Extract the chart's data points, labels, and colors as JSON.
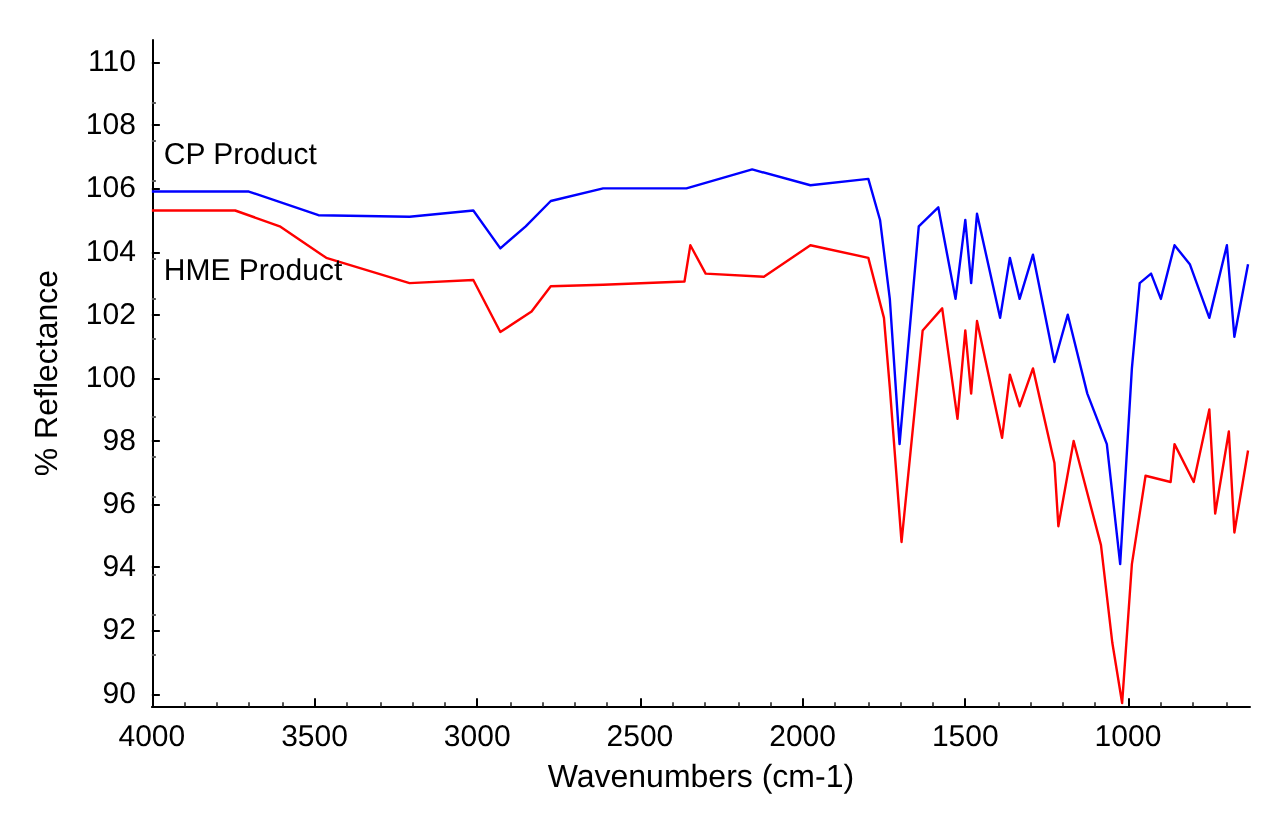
{
  "chart_data": {
    "type": "line",
    "xlabel": "Wavenumbers (cm-1)",
    "ylabel": "% Reflectance",
    "xlim": [
      4000,
      625
    ],
    "ylim": [
      89.6,
      110.7
    ],
    "xticks": [
      4000,
      3500,
      3000,
      2500,
      2000,
      1500,
      1000
    ],
    "yticks": [
      90,
      92,
      94,
      96,
      98,
      100,
      102,
      104,
      106,
      108,
      110
    ],
    "grid": false,
    "legend": false,
    "marker": "none",
    "line_style": "solid",
    "series": [
      {
        "name": "CP Product",
        "color": "#0000ff",
        "x": [
          4000,
          3702,
          3488,
          3208,
          3012,
          2929,
          2851,
          2774,
          2613,
          2494,
          2357,
          2155,
          1976,
          1798,
          1762,
          1732,
          1702,
          1643,
          1583,
          1530,
          1500,
          1482,
          1464,
          1393,
          1363,
          1333,
          1292,
          1226,
          1185,
          1125,
          1065,
          1024,
          988,
          964,
          929,
          899,
          857,
          810,
          750,
          696,
          673,
          631
        ],
        "values": [
          105.9,
          105.9,
          105.15,
          105.1,
          105.3,
          104.1,
          104.8,
          105.6,
          106.0,
          106.0,
          106.0,
          106.6,
          106.1,
          106.3,
          105.0,
          102.5,
          97.9,
          104.8,
          105.4,
          102.5,
          105.0,
          103.0,
          105.2,
          101.9,
          103.8,
          102.5,
          103.9,
          100.5,
          102.0,
          99.5,
          97.9,
          94.1,
          100.3,
          103.0,
          103.3,
          102.5,
          104.2,
          103.6,
          101.9,
          104.2,
          101.3,
          103.6
        ]
      },
      {
        "name": "HME Product",
        "color": "#ff0000",
        "x": [
          4000,
          3744,
          3607,
          3464,
          3208,
          3012,
          2929,
          2833,
          2774,
          2613,
          2363,
          2345,
          2298,
          2119,
          1976,
          1798,
          1750,
          1732,
          1696,
          1631,
          1571,
          1524,
          1500,
          1482,
          1464,
          1387,
          1363,
          1333,
          1292,
          1226,
          1214,
          1167,
          1083,
          1048,
          1018,
          988,
          946,
          869,
          857,
          798,
          750,
          732,
          690,
          673,
          631
        ],
        "values": [
          105.3,
          105.3,
          104.8,
          103.8,
          103.0,
          103.1,
          101.45,
          102.1,
          102.9,
          102.95,
          103.05,
          104.2,
          103.3,
          103.2,
          104.2,
          103.8,
          101.9,
          99.7,
          94.8,
          101.5,
          102.2,
          98.7,
          101.5,
          99.5,
          101.8,
          98.1,
          100.1,
          99.1,
          100.3,
          97.3,
          95.3,
          98.0,
          94.7,
          91.6,
          89.7,
          94.1,
          96.9,
          96.7,
          97.9,
          96.7,
          99.0,
          95.7,
          98.3,
          95.1,
          97.7
        ]
      }
    ]
  }
}
